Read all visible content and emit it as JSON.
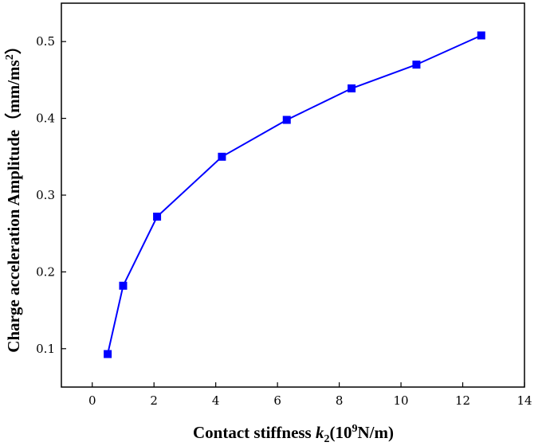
{
  "chart_data": {
    "type": "line",
    "xlabel_parts": {
      "prefix": "Contact stiffness ",
      "symbol": "k",
      "subscript": "2",
      "unit_open": "(10",
      "exponent": "9",
      "unit_close": "N/m)"
    },
    "ylabel_parts": {
      "text": "Charge acceleration Amplitude（mm/ms",
      "exponent": "2",
      "close": "）"
    },
    "xlim": [
      -1,
      14
    ],
    "ylim": [
      0.05,
      0.55
    ],
    "xticks": [
      0,
      2,
      4,
      6,
      8,
      10,
      12,
      14
    ],
    "yticks": [
      0.1,
      0.2,
      0.3,
      0.4,
      0.5
    ],
    "grid": false,
    "series": [
      {
        "color": "#0000ff",
        "marker": "square",
        "x": [
          0.5,
          1.0,
          2.1,
          4.2,
          6.3,
          8.4,
          10.5,
          12.6
        ],
        "y": [
          0.093,
          0.182,
          0.272,
          0.35,
          0.398,
          0.439,
          0.47,
          0.508
        ]
      }
    ]
  }
}
